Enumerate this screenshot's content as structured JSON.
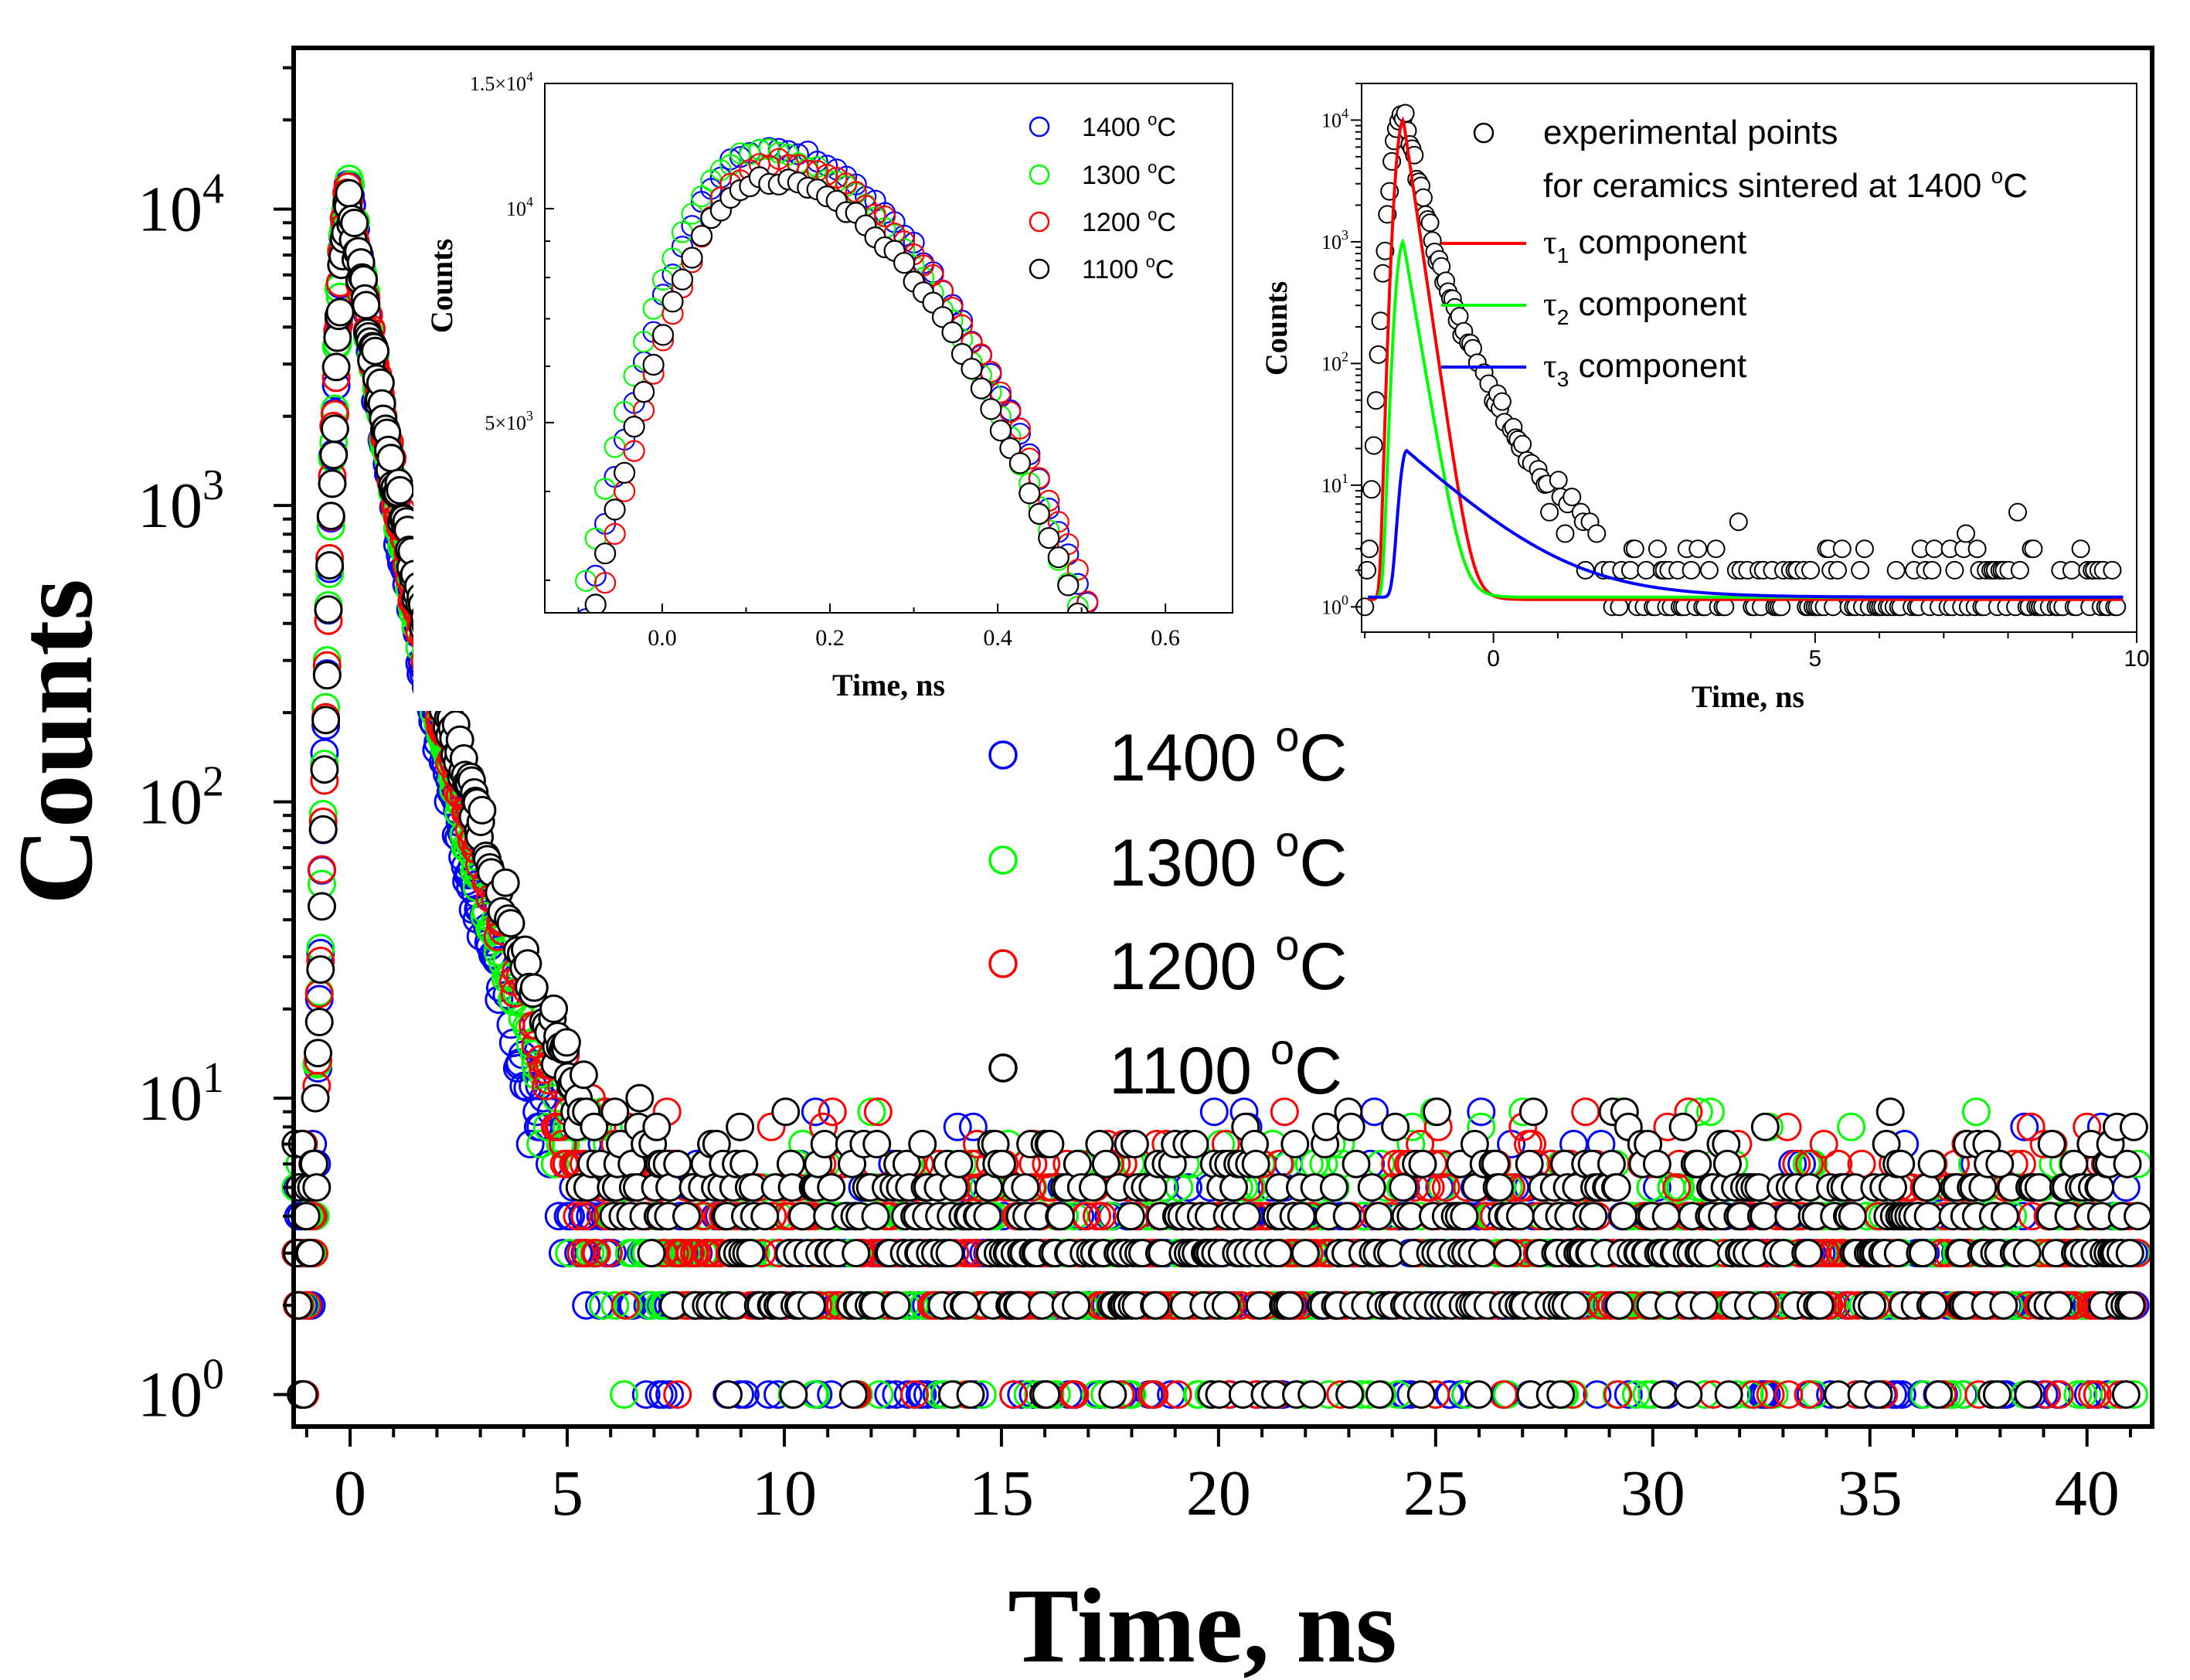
{
  "colors": {
    "s1400": "#0000ff",
    "s1300": "#00ff00",
    "s1200": "#ff0000",
    "s1100": "#000000",
    "tau1": "#ff0000",
    "tau2": "#00ff00",
    "tau3": "#0000ff"
  },
  "chart_data": [
    {
      "id": "main",
      "type": "scatter",
      "xlabel": "Time, ns",
      "ylabel": "Counts",
      "yscale": "log",
      "xlim": [
        -1.3,
        41.5
      ],
      "ylim": [
        0.78,
        35000
      ],
      "x_ticks": [
        0,
        5,
        10,
        15,
        20,
        25,
        30,
        35,
        40
      ],
      "x_tick_labels": [
        "0",
        "5",
        "10",
        "15",
        "20",
        "25",
        "30",
        "35",
        "40"
      ],
      "y_ticks": [
        1,
        10,
        100,
        1000,
        10000
      ],
      "y_tick_labels": [
        {
          "base": "10",
          "exp": "0"
        },
        {
          "base": "10",
          "exp": "1"
        },
        {
          "base": "10",
          "exp": "2"
        },
        {
          "base": "10",
          "exp": "3"
        },
        {
          "base": "10",
          "exp": "4"
        }
      ],
      "legend": {
        "placement": "center",
        "entries": [
          {
            "label": "1400 ",
            "unit": "C",
            "sup": "o",
            "color_key": "s1400"
          },
          {
            "label": "1300 ",
            "unit": "C",
            "sup": "o",
            "color_key": "s1300"
          },
          {
            "label": "1200 ",
            "unit": "C",
            "sup": "o",
            "color_key": "s1200"
          },
          {
            "label": "1100 ",
            "unit": "C",
            "sup": "o",
            "color_key": "s1100"
          }
        ]
      },
      "series": [
        {
          "name": "1400 °C",
          "color_key": "s1400",
          "peak_time": 0.0,
          "peak": 11000,
          "decay_ns": [
            0.35,
            0.75
          ],
          "background": 2.5
        },
        {
          "name": "1300 °C",
          "color_key": "s1300",
          "peak_time": 0.0,
          "peak": 11200,
          "decay_ns": [
            0.36,
            0.8
          ],
          "background": 2.8
        },
        {
          "name": "1200 °C",
          "color_key": "s1200",
          "peak_time": 0.0,
          "peak": 10800,
          "decay_ns": [
            0.37,
            0.85
          ],
          "background": 3.0
        },
        {
          "name": "1100 °C",
          "color_key": "s1100",
          "peak_time": 0.0,
          "peak": 10000,
          "decay_ns": [
            0.4,
            0.95
          ],
          "background": 3.3
        }
      ]
    },
    {
      "id": "inset1",
      "type": "scatter",
      "xlabel": "Time, ns",
      "ylabel": "Counts",
      "yscale": "log",
      "xlim": [
        -0.14,
        0.68
      ],
      "ylim": [
        2700,
        15000
      ],
      "x_ticks": [
        0.0,
        0.2,
        0.4,
        0.6
      ],
      "x_tick_labels": [
        "0.0",
        "0.2",
        "0.4",
        "0.6"
      ],
      "y_ticks": [
        5000,
        10000,
        15000
      ],
      "y_tick_labels": [
        {
          "base": "5×10",
          "exp": "3"
        },
        {
          "base": "10",
          "exp": "4"
        },
        {
          "base": "1.5×10",
          "exp": "4"
        }
      ],
      "legend": {
        "placement": "top-right",
        "entries": [
          {
            "label": "1400 ",
            "unit": "C",
            "sup": "o",
            "color_key": "s1400"
          },
          {
            "label": "1300 ",
            "unit": "C",
            "sup": "o",
            "color_key": "s1300"
          },
          {
            "label": "1200 ",
            "unit": "C",
            "sup": "o",
            "color_key": "s1200"
          },
          {
            "label": "1100 ",
            "unit": "C",
            "sup": "o",
            "color_key": "s1100"
          }
        ]
      },
      "series": [
        {
          "name": "1400 °C",
          "color_key": "s1400",
          "peak_time": 0.12,
          "peak": 12200
        },
        {
          "name": "1300 °C",
          "color_key": "s1300",
          "peak_time": 0.11,
          "peak": 12000
        },
        {
          "name": "1200 °C",
          "color_key": "s1200",
          "peak_time": 0.13,
          "peak": 11600
        },
        {
          "name": "1100 °C",
          "color_key": "s1100",
          "peak_time": 0.12,
          "peak": 11000
        }
      ]
    },
    {
      "id": "inset2",
      "type": "scatter",
      "xlabel": "Time, ns",
      "ylabel": "Counts",
      "yscale": "log",
      "xlim": [
        -2.05,
        10.0
      ],
      "ylim": [
        0.62,
        20000
      ],
      "x_ticks": [
        0,
        5,
        10
      ],
      "x_tick_labels": [
        "0",
        "5",
        "10"
      ],
      "y_ticks": [
        1,
        10,
        100,
        1000,
        10000
      ],
      "y_tick_labels": [
        {
          "base": "10",
          "exp": "0"
        },
        {
          "base": "10",
          "exp": "1"
        },
        {
          "base": "10",
          "exp": "2"
        },
        {
          "base": "10",
          "exp": "3"
        },
        {
          "base": "10",
          "exp": "4"
        }
      ],
      "legend": {
        "placement": "top-right",
        "points_label": "experimental points",
        "points_label2": "for ceramics sintered at 1400 ",
        "points_label2_unit": "C",
        "points_label2_sup": "o",
        "components": [
          {
            "symbol": "τ",
            "sub": "1",
            "label": " component",
            "color_key": "tau1"
          },
          {
            "symbol": "τ",
            "sub": "2",
            "label": " component",
            "color_key": "tau2"
          },
          {
            "symbol": "τ",
            "sub": "3",
            "label": " component",
            "color_key": "tau3"
          }
        ]
      },
      "points": {
        "peak_time": -1.4,
        "peak": 12000,
        "decay_ns": [
          0.16,
          0.45
        ],
        "background": 1.6
      },
      "components": [
        {
          "name": "τ₁ component",
          "color_key": "tau1",
          "peak_time": -1.4,
          "peak": 10000,
          "tau_ns": 0.12,
          "baseline": 1.15
        },
        {
          "name": "τ₂ component",
          "color_key": "tau2",
          "peak_time": -1.4,
          "peak": 1000,
          "tau_ns": 0.14,
          "baseline": 1.2
        },
        {
          "name": "τ₃ component",
          "color_key": "tau3",
          "peak_time": -1.35,
          "peak": 18,
          "tau_ns": 0.9,
          "baseline": 1.2
        }
      ]
    }
  ]
}
